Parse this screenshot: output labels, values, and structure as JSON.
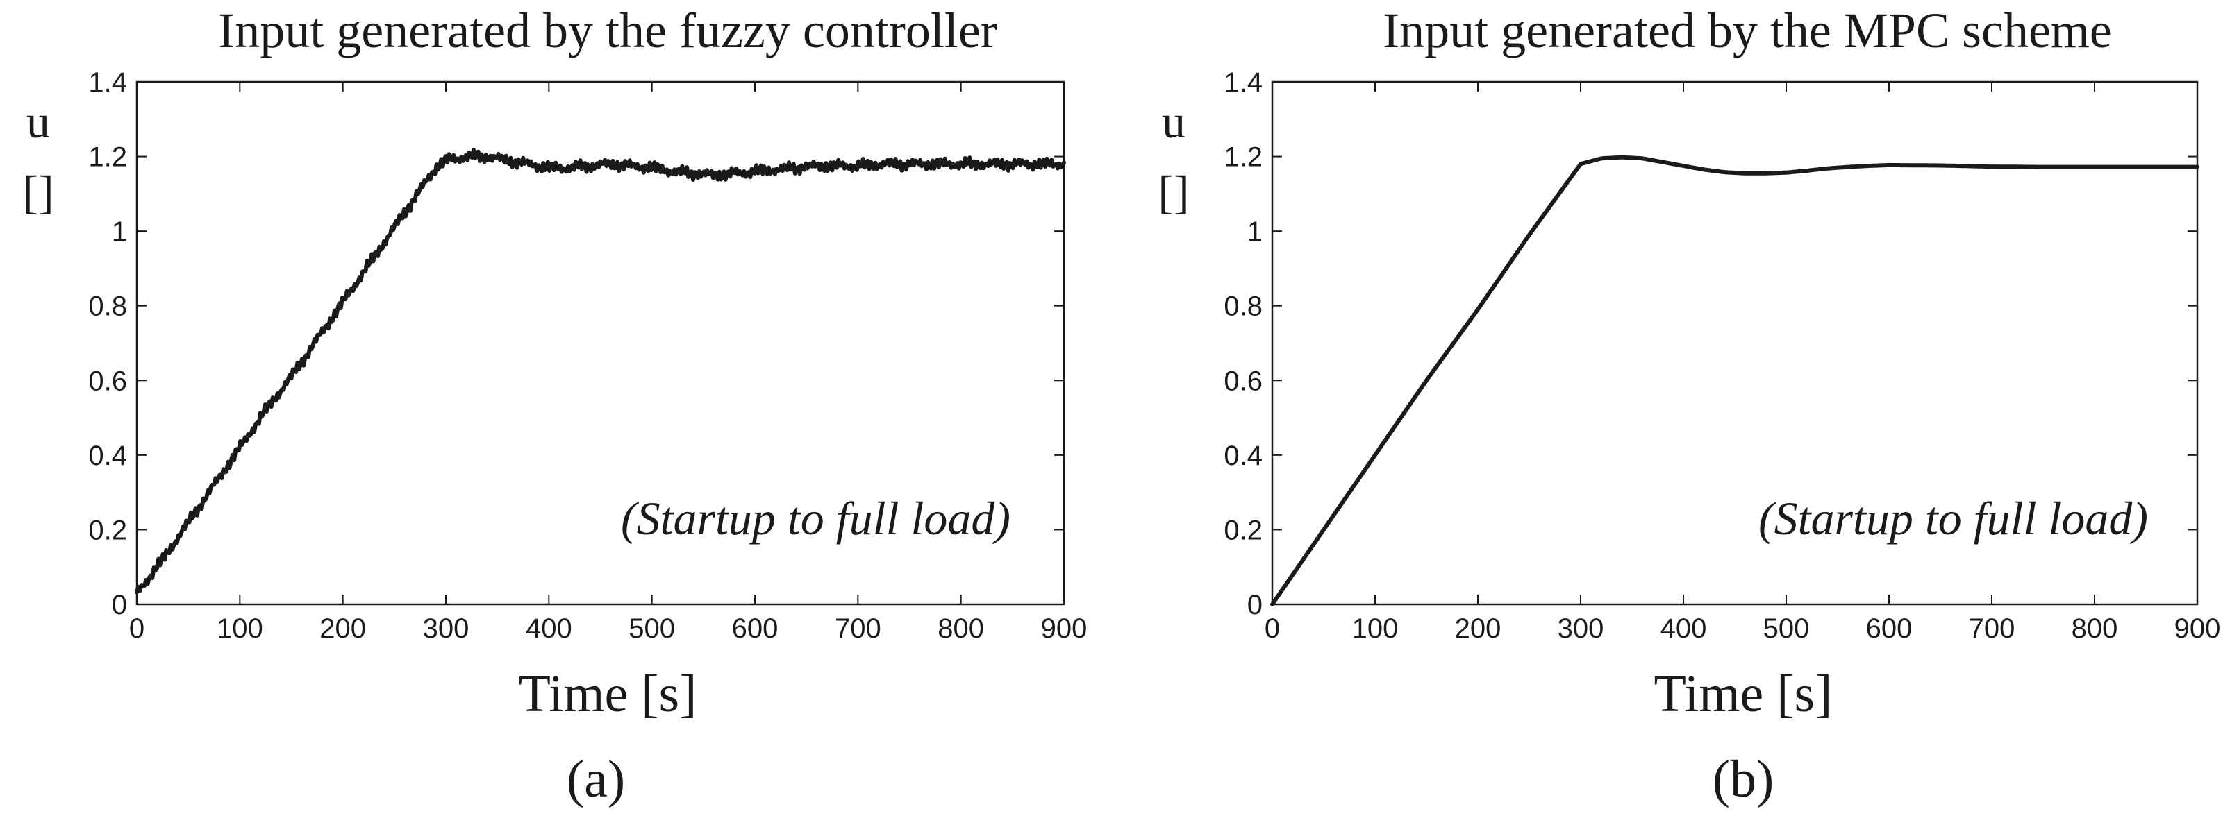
{
  "chart_data": [
    {
      "type": "line",
      "title": "Input generated by the fuzzy controller",
      "ylabel_line1": "u",
      "ylabel_line2": "[]",
      "xlabel": "Time [s]",
      "annotation": "(Startup to full load)",
      "panel_label": "(a)",
      "xlim": [
        0,
        900
      ],
      "ylim": [
        0,
        1.4
      ],
      "xticks": [
        0,
        100,
        200,
        300,
        400,
        500,
        600,
        700,
        800,
        900
      ],
      "xtick_labels": [
        "0",
        "100",
        "200",
        "300",
        "400",
        "500",
        "600",
        "700",
        "800",
        "900"
      ],
      "yticks": [
        0,
        0.2,
        0.4,
        0.6,
        0.8,
        1,
        1.2,
        1.4
      ],
      "ytick_labels": [
        "0",
        "0.2",
        "0.4",
        "0.6",
        "0.8",
        "1",
        "1.2",
        "1.4"
      ],
      "grid": false,
      "series": [
        {
          "noise_amplitude": 0.018,
          "x": [
            0,
            25,
            50,
            75,
            100,
            125,
            150,
            175,
            200,
            225,
            250,
            275,
            290,
            300,
            320,
            340,
            360,
            380,
            400,
            420,
            440,
            460,
            480,
            500,
            520,
            540,
            560,
            580,
            600,
            620,
            640,
            660,
            680,
            700,
            725,
            750,
            775,
            800,
            825,
            850,
            875,
            900
          ],
          "y": [
            0.03,
            0.12,
            0.22,
            0.32,
            0.42,
            0.52,
            0.61,
            0.71,
            0.81,
            0.91,
            1.01,
            1.11,
            1.17,
            1.19,
            1.2,
            1.2,
            1.19,
            1.18,
            1.17,
            1.17,
            1.175,
            1.18,
            1.175,
            1.17,
            1.16,
            1.155,
            1.15,
            1.155,
            1.16,
            1.165,
            1.17,
            1.175,
            1.175,
            1.175,
            1.18,
            1.18,
            1.18,
            1.18,
            1.18,
            1.18,
            1.18,
            1.18
          ]
        }
      ]
    },
    {
      "type": "line",
      "title": "Input generated by the MPC scheme",
      "ylabel_line1": "u",
      "ylabel_line2": "[]",
      "xlabel": "Time [s]",
      "annotation": "(Startup to full load)",
      "panel_label": "(b)",
      "xlim": [
        0,
        900
      ],
      "ylim": [
        0,
        1.4
      ],
      "xticks": [
        0,
        100,
        200,
        300,
        400,
        500,
        600,
        700,
        800,
        900
      ],
      "xtick_labels": [
        "0",
        "100",
        "200",
        "300",
        "400",
        "500",
        "600",
        "700",
        "800",
        "900"
      ],
      "yticks": [
        0,
        0.2,
        0.4,
        0.6,
        0.8,
        1,
        1.2,
        1.4
      ],
      "ytick_labels": [
        "0",
        "0.2",
        "0.4",
        "0.6",
        "0.8",
        "1",
        "1.2",
        "1.4"
      ],
      "grid": false,
      "series": [
        {
          "noise_amplitude": 0,
          "x": [
            0,
            50,
            100,
            150,
            200,
            250,
            300,
            320,
            340,
            360,
            380,
            400,
            420,
            440,
            460,
            480,
            500,
            520,
            540,
            560,
            580,
            600,
            650,
            700,
            750,
            800,
            850,
            900
          ],
          "y": [
            0,
            0.2,
            0.4,
            0.6,
            0.79,
            0.99,
            1.18,
            1.195,
            1.198,
            1.195,
            1.185,
            1.175,
            1.165,
            1.158,
            1.155,
            1.155,
            1.157,
            1.162,
            1.168,
            1.172,
            1.175,
            1.177,
            1.176,
            1.173,
            1.172,
            1.172,
            1.172,
            1.172
          ]
        }
      ]
    }
  ]
}
